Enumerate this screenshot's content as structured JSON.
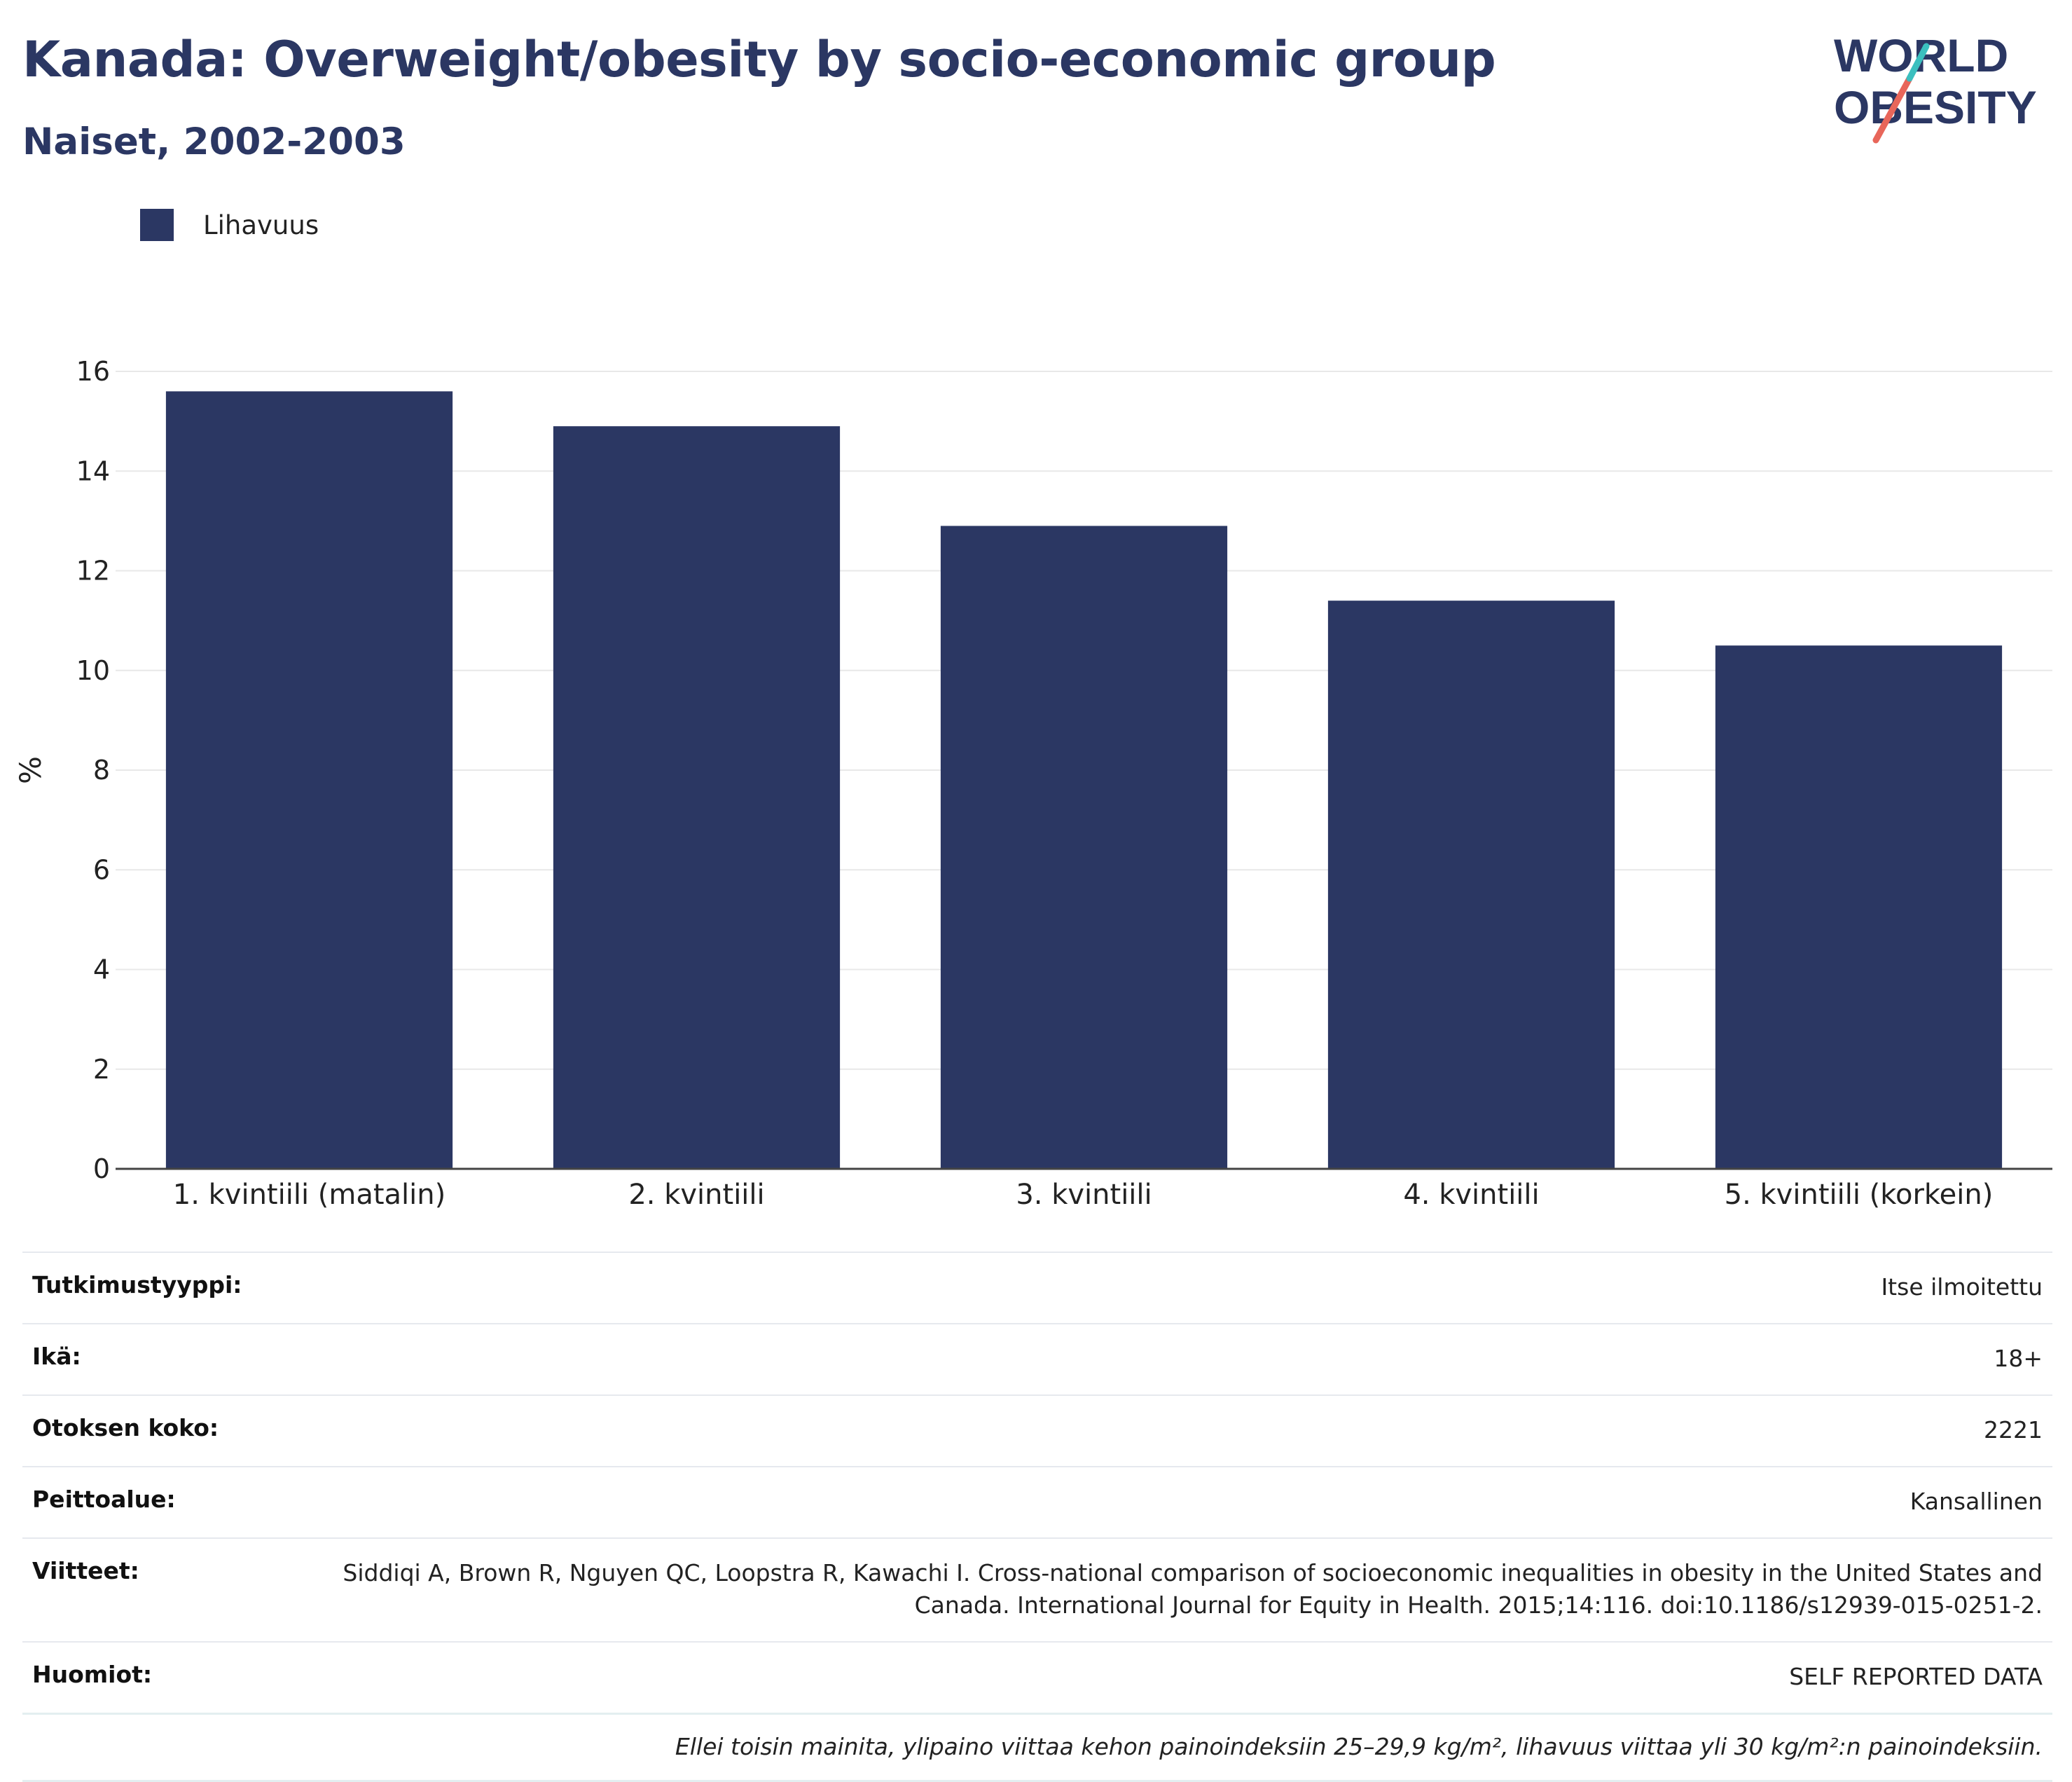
{
  "title": "Kanada: Overweight/obesity by socio-economic group",
  "subtitle": "Naiset, 2002-2003",
  "logo": {
    "line1": "WORLD",
    "line2": "OBESITY"
  },
  "colors": {
    "bar": "#2b3763",
    "title": "#2b3763",
    "logo_teal": "#3bbfbf",
    "logo_red": "#e8665a"
  },
  "chart_data": {
    "type": "bar",
    "categories": [
      "1. kvintiili (matalin)",
      "2. kvintiili",
      "3. kvintiili",
      "4. kvintiili",
      "5. kvintiili (korkein)"
    ],
    "series": [
      {
        "name": "Lihavuus",
        "values": [
          15.6,
          14.9,
          12.9,
          11.4,
          10.5
        ]
      }
    ],
    "ylabel": "%",
    "ylim": [
      0,
      16
    ],
    "yticks": [
      0,
      2,
      4,
      6,
      8,
      10,
      12,
      14,
      16
    ],
    "grid": true,
    "legend": "top-left"
  },
  "meta": [
    {
      "key": "Tutkimustyyppi:",
      "value": "Itse ilmoitettu"
    },
    {
      "key": "Ikä:",
      "value": "18+"
    },
    {
      "key": "Otoksen koko:",
      "value": "2221"
    },
    {
      "key": "Peittoalue:",
      "value": "Kansallinen"
    },
    {
      "key": "Viitteet:",
      "value": "Siddiqi A, Brown R, Nguyen QC, Loopstra R, Kawachi I. Cross-national comparison of socioeconomic inequalities in obesity in the United States and Canada. International Journal for Equity in Health. 2015;14:116. doi:10.1186/s12939-015-0251-2."
    },
    {
      "key": "Huomiot:",
      "value": "SELF REPORTED DATA"
    }
  ],
  "footnote": "Ellei toisin mainita, ylipaino viittaa kehon painoindeksiin 25–29,9 kg/m², lihavuus viittaa yli 30 kg/m²:n painoindeksiin."
}
